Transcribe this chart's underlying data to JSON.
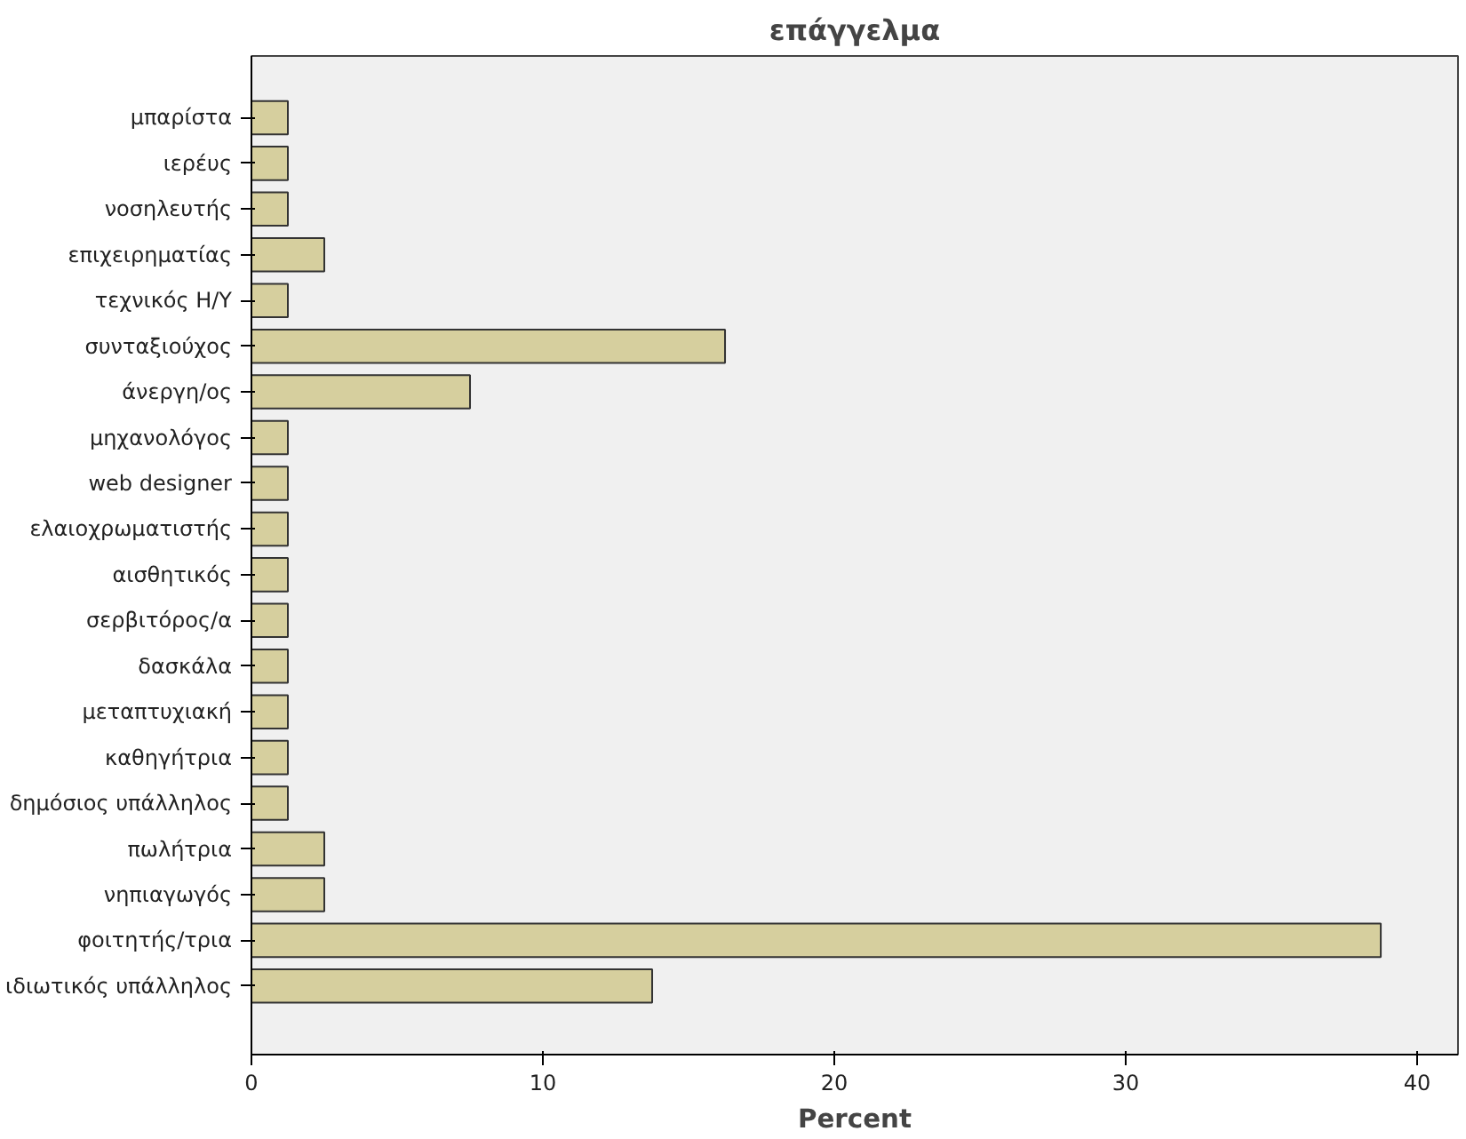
{
  "chart_data": {
    "type": "bar",
    "orientation": "horizontal",
    "title": "επάγγελμα",
    "xlabel": "Percent",
    "categories": [
      "μπαρίστα",
      "ιερέυς",
      "νοσηλευτής",
      "επιχειρηματίας",
      "τεχνικός Η/Υ",
      "συνταξιούχος",
      "άνεργη/ος",
      "μηχανολόγος",
      "web designer",
      "ελαιοχρωματιστής",
      "αισθητικός",
      "σερβιτόρος/α",
      "δασκάλα",
      "μεταπτυχιακή",
      "καθηγήτρια",
      "δημόσιος υπάλληλος",
      "πωλήτρια",
      "νηπιαγωγός",
      "φοιτητής/τρια",
      "ιδιωτικός υπάλληλος"
    ],
    "values": [
      1.25,
      1.25,
      1.25,
      2.5,
      1.25,
      16.25,
      7.5,
      1.25,
      1.25,
      1.25,
      1.25,
      1.25,
      1.25,
      1.25,
      1.25,
      1.25,
      2.5,
      2.5,
      38.75,
      13.75
    ],
    "color": "#d6cf9e",
    "xlim": [
      0,
      41.4
    ],
    "xticks": [
      0,
      10,
      20,
      30,
      40
    ]
  }
}
